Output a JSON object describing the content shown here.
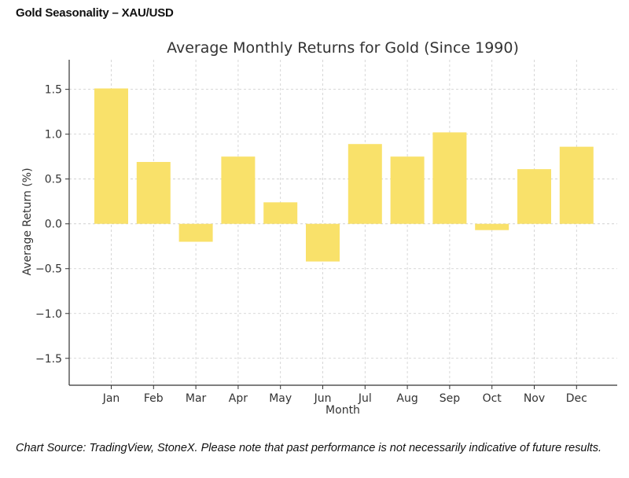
{
  "header": {
    "title": "Gold Seasonality – XAU/USD"
  },
  "footer": {
    "note": "Chart Source: TradingView, StoneX. Please note that past performance is not necessarily indicative of future results."
  },
  "colors": {
    "bar": "#f9e16a",
    "grid": "#cccccc",
    "axis": "#333333",
    "text": "#333333"
  },
  "chart_data": {
    "type": "bar",
    "title": "Average Monthly Returns for Gold (Since 1990)",
    "xlabel": "Month",
    "ylabel": "Average Return (%)",
    "categories": [
      "Jan",
      "Feb",
      "Mar",
      "Apr",
      "May",
      "Jun",
      "Jul",
      "Aug",
      "Sep",
      "Oct",
      "Nov",
      "Dec"
    ],
    "values": [
      1.51,
      0.69,
      -0.2,
      0.75,
      0.24,
      -0.42,
      0.89,
      0.75,
      1.02,
      -0.07,
      0.61,
      0.86
    ],
    "ylim": [
      -1.8,
      1.83
    ],
    "yticks": [
      1.5,
      1.0,
      0.5,
      0.0,
      -0.5,
      -1.0,
      -1.5
    ],
    "ytick_labels": [
      "1.5",
      "1.0",
      "0.5",
      "0.0",
      "−0.5",
      "−1.0",
      "−1.5"
    ],
    "grid": true,
    "legend": "none"
  }
}
